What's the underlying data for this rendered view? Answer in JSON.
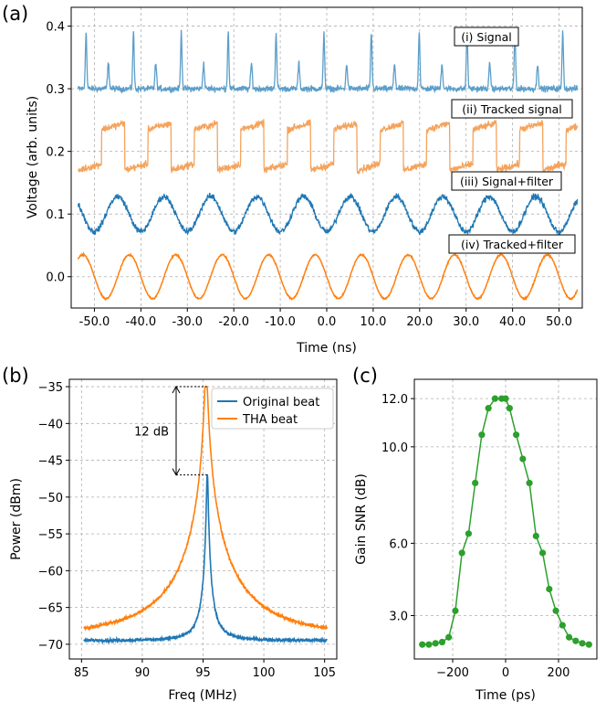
{
  "chart_data": [
    {
      "panel": "(a)",
      "type": "line",
      "xlabel": "Time (ns)",
      "ylabel": "Voltage (arb. units)",
      "xlim": [
        -55,
        55
      ],
      "ylim": [
        -0.05,
        0.43
      ],
      "xticks": [
        "-50.0",
        "-40.0",
        "-30.0",
        "-20.0",
        "-10.0",
        "0.0",
        "10.0",
        "20.0",
        "30.0",
        "40.0",
        "50.0"
      ],
      "yticks": [
        "0.0",
        "0.1",
        "0.2",
        "0.3",
        "0.4"
      ],
      "grid": true,
      "series": [
        {
          "name": "(i) Signal",
          "color": "#5b9ec9",
          "baseline": 0.3,
          "period_ns": 10.0,
          "spike_height": 0.09,
          "noise": 0.006
        },
        {
          "name": "(ii) Tracked signal",
          "color": "#f5a35c",
          "levels": [
            0.17,
            0.235
          ],
          "period_ns": 10.0,
          "noise": 0.007
        },
        {
          "name": "(iii) Signal+filter",
          "color": "#1f77b4",
          "baseline": 0.1,
          "amplitude": 0.028,
          "period_ns": 10.0,
          "phase_peak_ns": -45.0,
          "noise": 0.006
        },
        {
          "name": "(iv) Tracked+filter",
          "color": "#ff7f0e",
          "baseline": 0.0,
          "amplitude": 0.035,
          "period_ns": 10.0,
          "phase_peak_ns": -52.5,
          "noise": 0.0
        }
      ]
    },
    {
      "panel": "(b)",
      "type": "line",
      "xlabel": "Freq (MHz)",
      "ylabel": "Power (dBm)",
      "xlim": [
        84,
        106
      ],
      "ylim": [
        -72,
        -34
      ],
      "xticks": [
        "85",
        "90",
        "95",
        "100",
        "105"
      ],
      "yticks": [
        "-35",
        "-40",
        "-45",
        "-50",
        "-55",
        "-60",
        "-65",
        "-70"
      ],
      "grid": true,
      "legend": "top-right",
      "annotation": "12 dB",
      "series": [
        {
          "name": "Original beat",
          "color": "#1f77b4",
          "peak_freq": 95.35,
          "peak_dbm": -47,
          "floor_dbm": -69.5
        },
        {
          "name": "THA beat",
          "color": "#ff7f0e",
          "peak_freq": 95.25,
          "peak_dbm": -35,
          "floor_dbm": -69.2
        }
      ]
    },
    {
      "panel": "(c)",
      "type": "line",
      "xlabel": "Time (ps)",
      "ylabel": "Gain SNR (dB)",
      "xlim": [
        -345,
        345
      ],
      "ylim": [
        1.2,
        12.8
      ],
      "xticks": [
        "-200",
        "0",
        "200"
      ],
      "yticks": [
        "3.0",
        "6.0",
        "10.0",
        "12.0"
      ],
      "grid": true,
      "series": [
        {
          "name": "Gain SNR",
          "color": "#2ca02c",
          "x": [
            -315,
            -290,
            -265,
            -240,
            -215,
            -190,
            -165,
            -140,
            -115,
            -90,
            -65,
            -40,
            -15,
            0,
            15,
            40,
            65,
            90,
            115,
            140,
            165,
            190,
            215,
            240,
            265,
            290,
            315
          ],
          "y": [
            1.8,
            1.8,
            1.85,
            1.9,
            2.1,
            3.2,
            5.6,
            6.4,
            8.5,
            10.5,
            11.6,
            12.0,
            12.0,
            12.0,
            11.6,
            10.5,
            9.5,
            8.5,
            6.3,
            5.6,
            4.1,
            3.2,
            2.6,
            2.1,
            1.95,
            1.85,
            1.8
          ]
        }
      ]
    }
  ],
  "panel_labels": [
    "(a)",
    "(b)",
    "(c)"
  ]
}
